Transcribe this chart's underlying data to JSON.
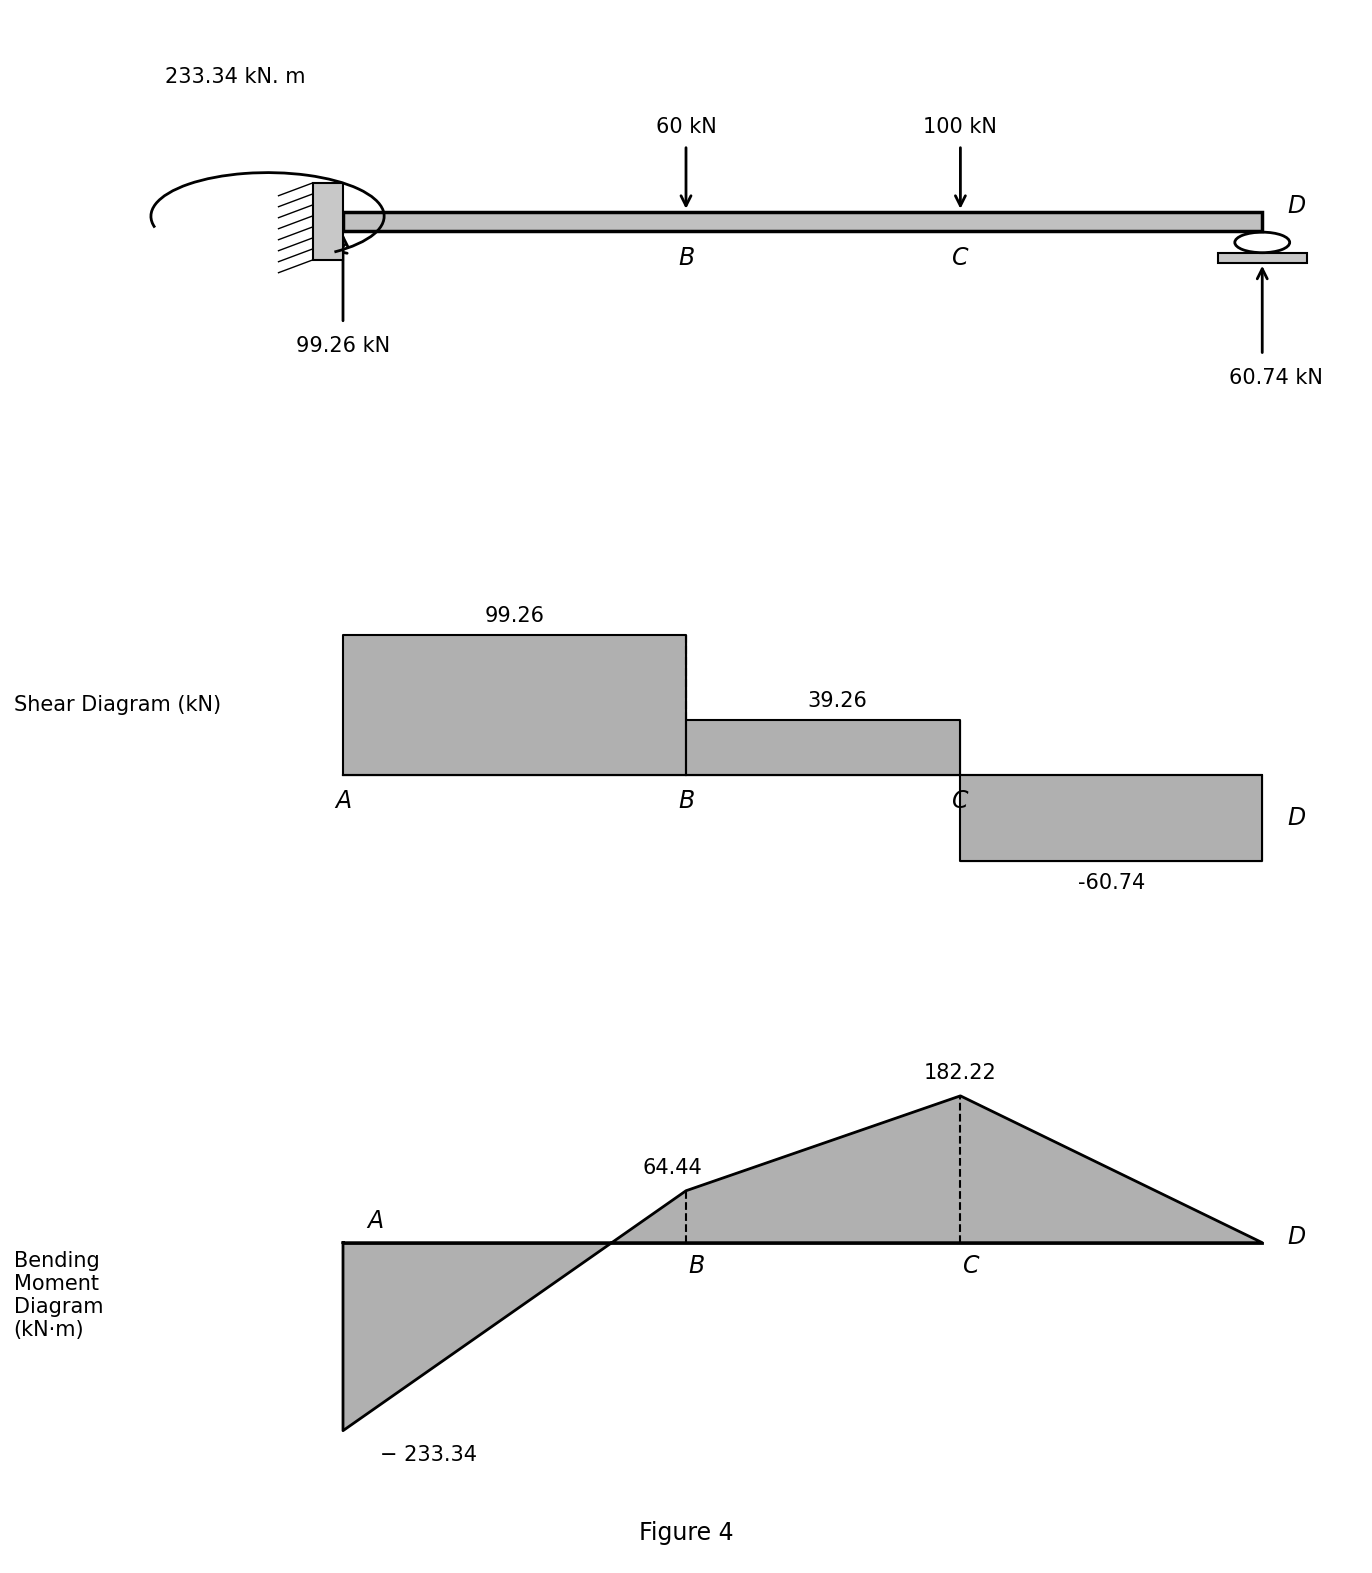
{
  "fig_width": 13.72,
  "fig_height": 15.73,
  "bg_color": "#ffffff",
  "beam_color": "#b8b8b8",
  "fill_color": "#b0b0b0",
  "line_color": "#000000",
  "moment_label": "233.34 kN. m",
  "load_60": "60 kN",
  "load_100": "100 kN",
  "react_A": "99.26 kN",
  "react_D": "60.74 kN",
  "label_A": "A",
  "label_B": "B",
  "label_C": "C",
  "label_D": "D",
  "shear_title": "Shear Diagram (kN)",
  "shear_vals": [
    99.26,
    39.26,
    -60.74
  ],
  "shear_labels": [
    "99.26",
    "39.26",
    "-60.74"
  ],
  "bm_title": "Bending\nMoment\nDiagram\n(kN·m)",
  "bm_A_val": -233.34,
  "bm_B_val": 64.44,
  "bm_C_val": 182.22,
  "bm_D_val": 0.0,
  "bm_labels": [
    "− 233.34",
    "64.44",
    "182.22"
  ],
  "figure_caption": "Figure 4",
  "font_size": 15,
  "label_font_size": 17
}
